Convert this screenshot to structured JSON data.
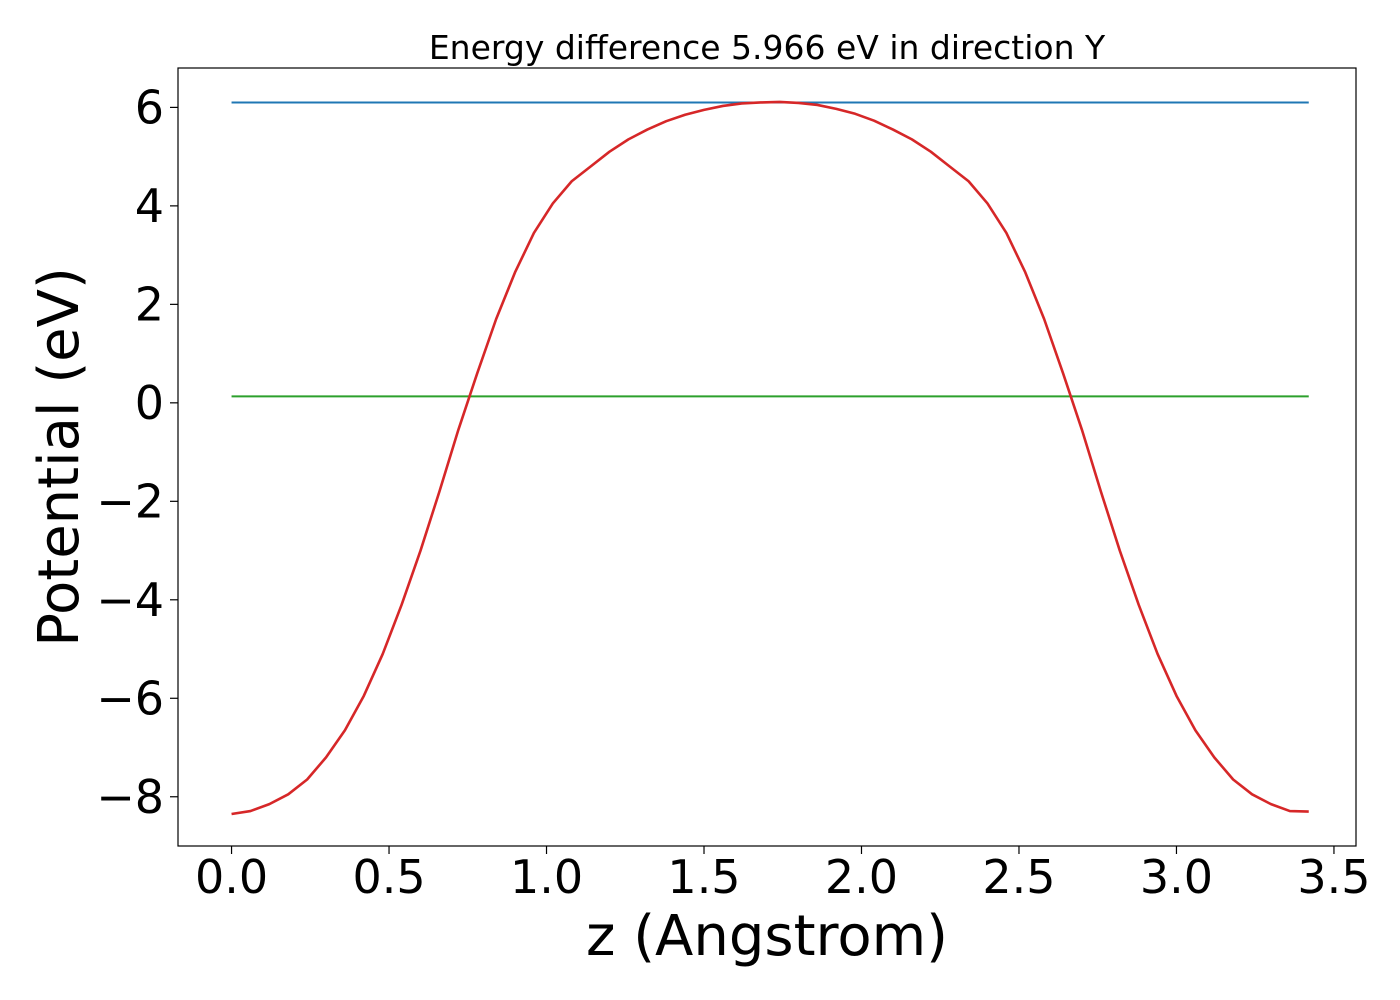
{
  "chart_data": {
    "type": "line",
    "title": "Energy difference 5.966 eV in direction Y",
    "xlabel": "z (Angstrom)",
    "ylabel": "Potential (eV)",
    "xlim": [
      -0.17,
      3.57
    ],
    "ylim": [
      -9.0,
      6.8
    ],
    "x_ticks": [
      0.0,
      0.5,
      1.0,
      1.5,
      2.0,
      2.5,
      3.0,
      3.5
    ],
    "x_tick_labels": [
      "0.0",
      "0.5",
      "1.0",
      "1.5",
      "2.0",
      "2.5",
      "3.0",
      "3.5"
    ],
    "y_ticks": [
      -8,
      -6,
      -4,
      -2,
      0,
      2,
      4,
      6
    ],
    "y_tick_labels": [
      "−8",
      "−6",
      "−4",
      "−2",
      "0",
      "2",
      "4",
      "6"
    ],
    "grid": false,
    "legend": "none",
    "series": [
      {
        "color": "#1f77b4",
        "x": [
          0.0,
          3.42
        ],
        "y": [
          6.1,
          6.1
        ]
      },
      {
        "color": "#2ca02c",
        "x": [
          0.0,
          3.42
        ],
        "y": [
          0.13,
          0.13
        ]
      },
      {
        "color": "#d62728",
        "x": [
          0.0,
          0.06,
          0.12,
          0.18,
          0.24,
          0.3,
          0.36,
          0.42,
          0.48,
          0.54,
          0.6,
          0.66,
          0.72,
          0.78,
          0.84,
          0.9,
          0.96,
          1.02,
          1.08,
          1.14,
          1.2,
          1.26,
          1.32,
          1.38,
          1.44,
          1.5,
          1.56,
          1.62,
          1.68,
          1.74,
          1.8,
          1.86,
          1.92,
          1.98,
          2.04,
          2.1,
          2.16,
          2.22,
          2.28,
          2.34,
          2.4,
          2.46,
          2.52,
          2.58,
          2.64,
          2.7,
          2.76,
          2.82,
          2.88,
          2.94,
          3.0,
          3.06,
          3.12,
          3.18,
          3.24,
          3.3,
          3.36,
          3.42
        ],
        "y": [
          -8.35,
          -8.29,
          -8.15,
          -7.95,
          -7.65,
          -7.2,
          -6.65,
          -5.95,
          -5.1,
          -4.1,
          -3.0,
          -1.8,
          -0.55,
          0.6,
          1.7,
          2.65,
          3.45,
          4.05,
          4.5,
          4.8,
          5.1,
          5.35,
          5.55,
          5.72,
          5.85,
          5.95,
          6.03,
          6.08,
          6.1,
          6.11,
          6.09,
          6.05,
          5.97,
          5.87,
          5.73,
          5.55,
          5.35,
          5.1,
          4.8,
          4.5,
          4.05,
          3.45,
          2.65,
          1.7,
          0.6,
          -0.55,
          -1.8,
          -3.0,
          -4.1,
          -5.1,
          -5.95,
          -6.65,
          -7.2,
          -7.65,
          -7.95,
          -8.15,
          -8.29,
          -8.3
        ]
      }
    ]
  }
}
